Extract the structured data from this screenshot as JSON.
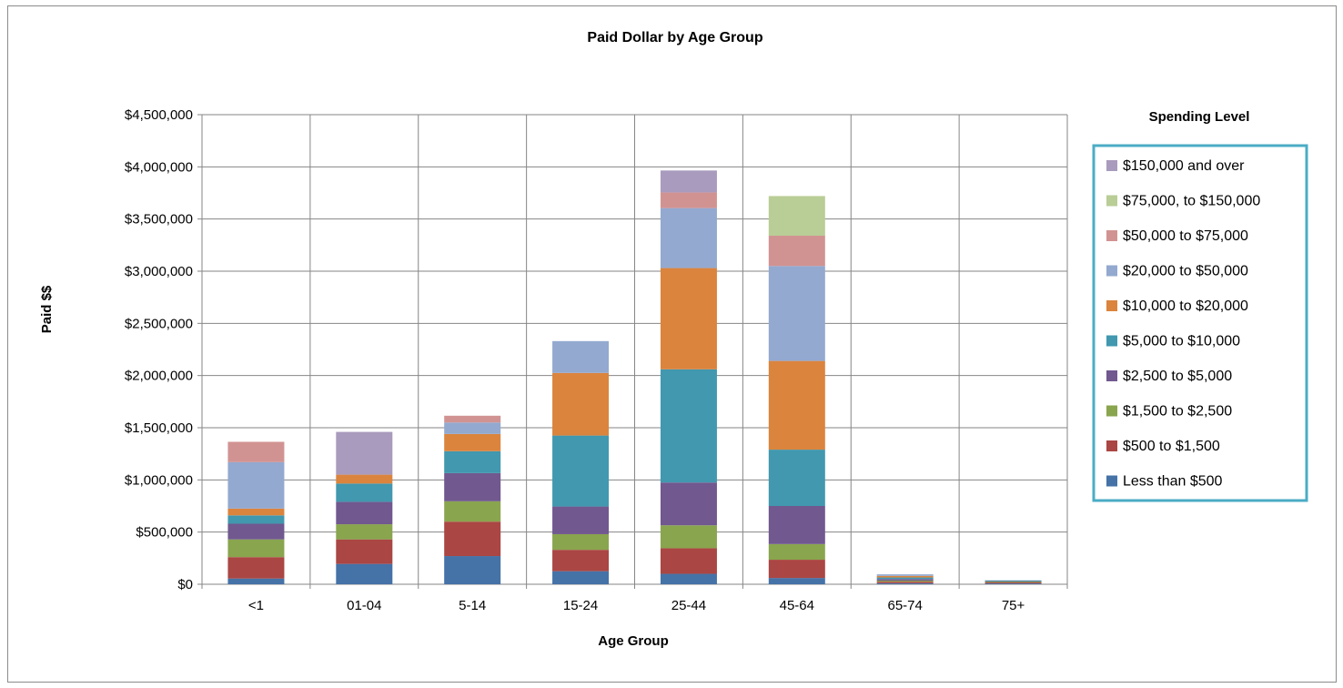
{
  "chart_data": {
    "type": "bar",
    "stacked": true,
    "title": "Paid Dollar by Age Group",
    "xlabel": "Age Group",
    "ylabel": "Paid $$",
    "ylim": [
      0,
      4500000
    ],
    "yticks": [
      0,
      500000,
      1000000,
      1500000,
      2000000,
      2500000,
      3000000,
      3500000,
      4000000,
      4500000
    ],
    "ytick_labels": [
      "$0",
      "$500,000",
      "$1,000,000",
      "$1,500,000",
      "$2,000,000",
      "$2,500,000",
      "$3,000,000",
      "$3,500,000",
      "$4,000,000",
      "$4,500,000"
    ],
    "grid": true,
    "legend_title": "Spending Level",
    "legend_position": "right",
    "categories": [
      "<1",
      "01-04",
      "5-14",
      "15-24",
      "25-44",
      "45-64",
      "65-74",
      "75+"
    ],
    "series": [
      {
        "name": "Less than $500",
        "color": "#4572A7",
        "values": [
          55000,
          195000,
          270000,
          125000,
          100000,
          60000,
          10000,
          8000
        ]
      },
      {
        "name": "$500 to $1,500",
        "color": "#AA4643",
        "values": [
          205000,
          235000,
          330000,
          205000,
          245000,
          175000,
          15000,
          10000
        ]
      },
      {
        "name": "$1,500 to $2,500",
        "color": "#89A54E",
        "values": [
          170000,
          145000,
          195000,
          150000,
          220000,
          150000,
          10000,
          8000
        ]
      },
      {
        "name": "$2,500 to $5,000",
        "color": "#71588F",
        "values": [
          150000,
          215000,
          270000,
          265000,
          410000,
          365000,
          15000,
          6000
        ]
      },
      {
        "name": "$5,000 to $10,000",
        "color": "#4198AF",
        "values": [
          80000,
          175000,
          210000,
          680000,
          1085000,
          540000,
          15000,
          5000
        ]
      },
      {
        "name": "$10,000 to $20,000",
        "color": "#DB843D",
        "values": [
          65000,
          85000,
          165000,
          600000,
          970000,
          850000,
          15000,
          0
        ]
      },
      {
        "name": "$20,000 to $50,000",
        "color": "#93A9CF",
        "values": [
          445000,
          0,
          110000,
          305000,
          575000,
          910000,
          15000,
          0
        ]
      },
      {
        "name": "$50,000 to $75,000",
        "color": "#D19392",
        "values": [
          195000,
          0,
          65000,
          0,
          150000,
          290000,
          0,
          0
        ]
      },
      {
        "name": "$75,000, to $150,000",
        "color": "#B9CD96",
        "values": [
          0,
          0,
          0,
          0,
          0,
          380000,
          0,
          0
        ]
      },
      {
        "name": "$150,000 and over",
        "color": "#A99BBD",
        "values": [
          0,
          410000,
          0,
          0,
          210000,
          0,
          0,
          0
        ]
      }
    ]
  }
}
